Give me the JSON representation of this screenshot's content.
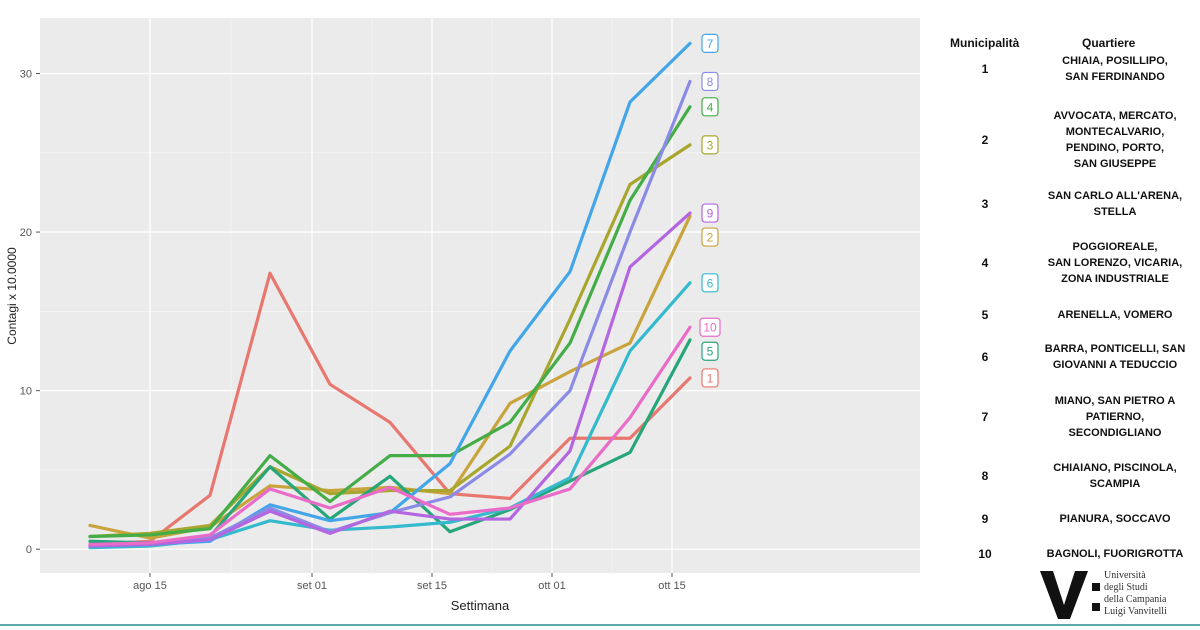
{
  "chart_data": {
    "type": "line",
    "xlabel": "Settimana",
    "ylabel": "Contagi x 10.0000",
    "x_ticks": [
      "ago 15",
      "set 01",
      "set 15",
      "ott 01",
      "ott 15"
    ],
    "y_ticks": [
      "0",
      "10",
      "20",
      "30"
    ],
    "ylim": [
      -1.5,
      33.5
    ],
    "x_weeks": [
      "ago 08",
      "ago 15",
      "ago 22",
      "ago 29",
      "set 05",
      "set 12",
      "set 19",
      "set 26",
      "ott 03",
      "ott 10",
      "ott 17"
    ],
    "grid": true,
    "series": [
      {
        "name": "1",
        "color": "#e8776f",
        "values": [
          0.3,
          0.5,
          3.4,
          17.4,
          10.4,
          8.0,
          3.5,
          3.2,
          7.0,
          7.0,
          10.8
        ]
      },
      {
        "name": "2",
        "color": "#c9a33c",
        "values": [
          1.5,
          0.7,
          1.4,
          4.0,
          3.7,
          3.9,
          3.5,
          9.2,
          11.2,
          13.0,
          21.0
        ]
      },
      {
        "name": "3",
        "color": "#a8a62e",
        "values": [
          0.8,
          1.0,
          1.5,
          5.2,
          3.5,
          3.7,
          3.7,
          6.5,
          14.5,
          23.0,
          25.5
        ]
      },
      {
        "name": "4",
        "color": "#44ad47",
        "values": [
          0.8,
          0.9,
          1.3,
          5.9,
          3.0,
          5.9,
          5.9,
          8.0,
          13.0,
          22.0,
          27.9
        ]
      },
      {
        "name": "5",
        "color": "#27a67a",
        "values": [
          0.5,
          0.4,
          0.8,
          5.2,
          1.9,
          4.6,
          1.1,
          2.5,
          4.3,
          6.1,
          13.2
        ]
      },
      {
        "name": "6",
        "color": "#35b9cc",
        "values": [
          0.1,
          0.2,
          0.6,
          1.8,
          1.2,
          1.4,
          1.7,
          2.6,
          4.5,
          12.5,
          16.8
        ]
      },
      {
        "name": "7",
        "color": "#43a6e8",
        "values": [
          0.2,
          0.3,
          0.5,
          2.8,
          1.8,
          2.3,
          5.4,
          12.5,
          17.5,
          28.2,
          31.9
        ]
      },
      {
        "name": "8",
        "color": "#8b8be6",
        "values": [
          0.2,
          0.4,
          0.7,
          2.6,
          1.1,
          2.3,
          3.3,
          6.0,
          10.0,
          20.0,
          29.5
        ]
      },
      {
        "name": "9",
        "color": "#b466e0",
        "values": [
          0.2,
          0.3,
          0.6,
          2.4,
          1.0,
          2.4,
          1.9,
          1.9,
          6.2,
          17.8,
          21.2
        ]
      },
      {
        "name": "10",
        "color": "#e96cc8",
        "values": [
          0.3,
          0.4,
          0.9,
          3.8,
          2.6,
          3.9,
          2.2,
          2.6,
          3.8,
          8.3,
          14.0
        ]
      }
    ]
  },
  "legend_table": {
    "header_municipalita": "Municipalità",
    "header_quartiere": "Quartiere",
    "rows": [
      {
        "num": "1",
        "quartiere": "CHIAIA, POSILLIPO,\nSAN FERDINANDO"
      },
      {
        "num": "2",
        "quartiere": "AVVOCATA, MERCATO,\nMONTECALVARIO,\nPENDINO, PORTO,\nSAN GIUSEPPE"
      },
      {
        "num": "3",
        "quartiere": "SAN CARLO ALL'ARENA,\nSTELLA"
      },
      {
        "num": "4",
        "quartiere": "POGGIOREALE,\nSAN LORENZO, VICARIA,\nZONA INDUSTRIALE"
      },
      {
        "num": "5",
        "quartiere": "ARENELLA, VOMERO"
      },
      {
        "num": "6",
        "quartiere": "BARRA, PONTICELLI, SAN\nGIOVANNI A TEDUCCIO"
      },
      {
        "num": "7",
        "quartiere": "MIANO, SAN PIETRO A\nPATIERNO,\nSECONDIGLIANO"
      },
      {
        "num": "8",
        "quartiere": "CHIAIANO, PISCINOLA,\nSCAMPIA"
      },
      {
        "num": "9",
        "quartiere": "PIANURA, SOCCAVO"
      },
      {
        "num": "10",
        "quartiere": "BAGNOLI, FUORIGROTTA"
      }
    ]
  },
  "logo": {
    "mark": "V:",
    "lines": [
      "Università",
      "degli Studi",
      "della Campania",
      "Luigi Vanvitelli"
    ]
  }
}
